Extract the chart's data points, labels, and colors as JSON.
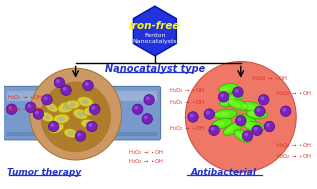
{
  "bg_color": "#ffffff",
  "hexagon_color": "#2233dd",
  "hex_text1": "Iron-free",
  "hex_text1_color": "#ffff00",
  "hex_text2": "Fenton\nNanocatalysts",
  "hex_text2_color": "#ffffff",
  "nanocatalyst_label": "Nanocatalyst type",
  "nanocatalyst_label_color": "#2233cc",
  "tumor_label": "Tumor therapy",
  "tumor_label_color": "#2233cc",
  "antibacterial_label": "Antibacterial",
  "antibacterial_label_color": "#2233cc",
  "tube_color_main": "#7799cc",
  "tube_color_light": "#aabbdd",
  "tube_color_dark": "#5577aa",
  "tumor_outer_color": "#cc9966",
  "tumor_inner_color": "#aa7722",
  "cell_yellow": "#ddcc33",
  "cell_edge": "#aa9900",
  "cell_core": "#88aacc",
  "nano_purple": "#7722bb",
  "nano_edge": "#440088",
  "nano_highlight": "#aa66ee",
  "anti_circle_color": "#ee7766",
  "anti_circle_edge": "#cc5544",
  "bacteria_color": "#55ee11",
  "bacteria_edge": "#33aa00",
  "bacteria_highlight": "#99ff44",
  "h2o2_color": "#dd2222",
  "arrow_color": "#000000",
  "line_color": "#333333"
}
